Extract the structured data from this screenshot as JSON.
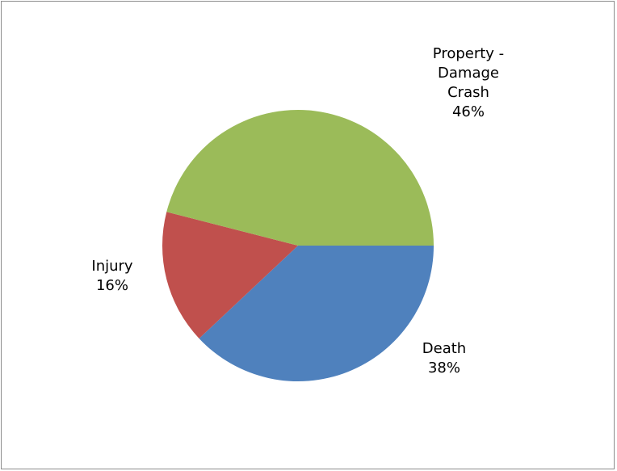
{
  "chart_data": {
    "type": "pie",
    "title": "",
    "slices": [
      {
        "label_lines": [
          "Death"
        ],
        "percent_text": "38%",
        "value": 38,
        "color": "#4F81BD"
      },
      {
        "label_lines": [
          "Injury"
        ],
        "percent_text": "16%",
        "value": 16,
        "color": "#C0504D"
      },
      {
        "label_lines": [
          "Property -",
          "Damage",
          "Crash"
        ],
        "percent_text": "46%",
        "value": 46,
        "color": "#9BBB59"
      }
    ],
    "start_angle_deg": 0,
    "direction": "clockwise",
    "legend": "none"
  }
}
